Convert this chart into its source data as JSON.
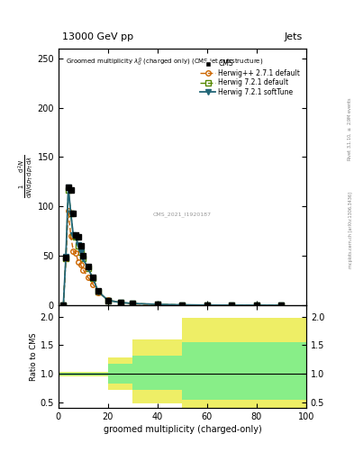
{
  "title_top": "13000 GeV pp",
  "title_right": "Jets",
  "plot_title": "Groomed multiplicity $\\lambda_0^0$ (charged only) (CMS jet substructure)",
  "xlabel": "groomed multiplicity (charged-only)",
  "ylabel_top": "$\\frac{1}{\\mathrm{d}N/\\mathrm{d}p_\\mathrm{T}}\\frac{\\mathrm{d}^2N}{\\mathrm{d}p_\\mathrm{T}\\,\\mathrm{d}\\lambda}$",
  "right_label": "mcplots.cern.ch [arXiv:1306.3436]",
  "right_label2": "Rivet 3.1.10, $\\geq$ 2.9M events",
  "watermark": "CMS_2021_I1920187",
  "cms_x": [
    2,
    3,
    4,
    5,
    6,
    7,
    8,
    9,
    10,
    12,
    14,
    16,
    20,
    25,
    30,
    40,
    50,
    60,
    70,
    80,
    90
  ],
  "cms_y": [
    0,
    48,
    119,
    117,
    93,
    71,
    69,
    60,
    50,
    39,
    28,
    15,
    5,
    2.8,
    1.8,
    0.9,
    0.4,
    0.15,
    0.07,
    0.03,
    0.01
  ],
  "herwig_pp_x": [
    2,
    3,
    4,
    5,
    6,
    7,
    8,
    9,
    10,
    12,
    14,
    16,
    20,
    25,
    30,
    40,
    50
  ],
  "herwig_pp_y": [
    0,
    47,
    96,
    70,
    55,
    53,
    44,
    41,
    36,
    28,
    21,
    13,
    5.5,
    2.8,
    1.4,
    0.5,
    0.18
  ],
  "herwig721_x": [
    2,
    3,
    4,
    5,
    6,
    7,
    8,
    9,
    10,
    12,
    14,
    16,
    20,
    25,
    30,
    40,
    50,
    60,
    70,
    80,
    90
  ],
  "herwig721_y": [
    0,
    47,
    117,
    93,
    70,
    69,
    60,
    54,
    47,
    37,
    27,
    14,
    5,
    2.8,
    1.8,
    0.9,
    0.4,
    0.15,
    0.07,
    0.03,
    0.01
  ],
  "herwig721_soft_x": [
    2,
    3,
    4,
    5,
    6,
    7,
    8,
    9,
    10,
    12,
    14,
    16,
    20,
    25,
    30,
    40,
    50,
    60,
    70,
    80,
    90
  ],
  "herwig721_soft_y": [
    0,
    49,
    119,
    93,
    71,
    69,
    61,
    54,
    47,
    37,
    27,
    14,
    5,
    2.8,
    1.8,
    0.9,
    0.4,
    0.15,
    0.07,
    0.03,
    0.01
  ],
  "ylim_main": [
    0,
    260
  ],
  "yticks_main": [
    0,
    50,
    100,
    150,
    200,
    250
  ],
  "xlim": [
    0,
    100
  ],
  "xticks": [
    0,
    20,
    40,
    60,
    80,
    100
  ],
  "ylim_ratio": [
    0.4,
    2.2
  ],
  "ratio_yticks": [
    0.5,
    1.0,
    1.5,
    2.0
  ],
  "color_cms": "#000000",
  "color_herwig_pp": "#cc6600",
  "color_herwig721": "#558800",
  "color_herwig721_soft": "#226677",
  "color_green_band": "#88ee88",
  "color_yellow_band": "#eeee66",
  "bands": {
    "yellow_bins": [
      [
        0,
        10
      ],
      [
        10,
        20
      ],
      [
        20,
        30
      ],
      [
        30,
        50
      ],
      [
        50,
        100
      ]
    ],
    "yellow_lo": [
      0.96,
      0.96,
      0.72,
      0.48,
      0.38
    ],
    "yellow_hi": [
      1.04,
      1.04,
      1.28,
      1.6,
      1.98
    ],
    "green_bins": [
      [
        0,
        10
      ],
      [
        10,
        20
      ],
      [
        20,
        30
      ],
      [
        30,
        50
      ],
      [
        50,
        100
      ]
    ],
    "green_lo": [
      0.975,
      0.975,
      0.82,
      0.72,
      0.55
    ],
    "green_hi": [
      1.025,
      1.025,
      1.18,
      1.32,
      1.55
    ]
  }
}
